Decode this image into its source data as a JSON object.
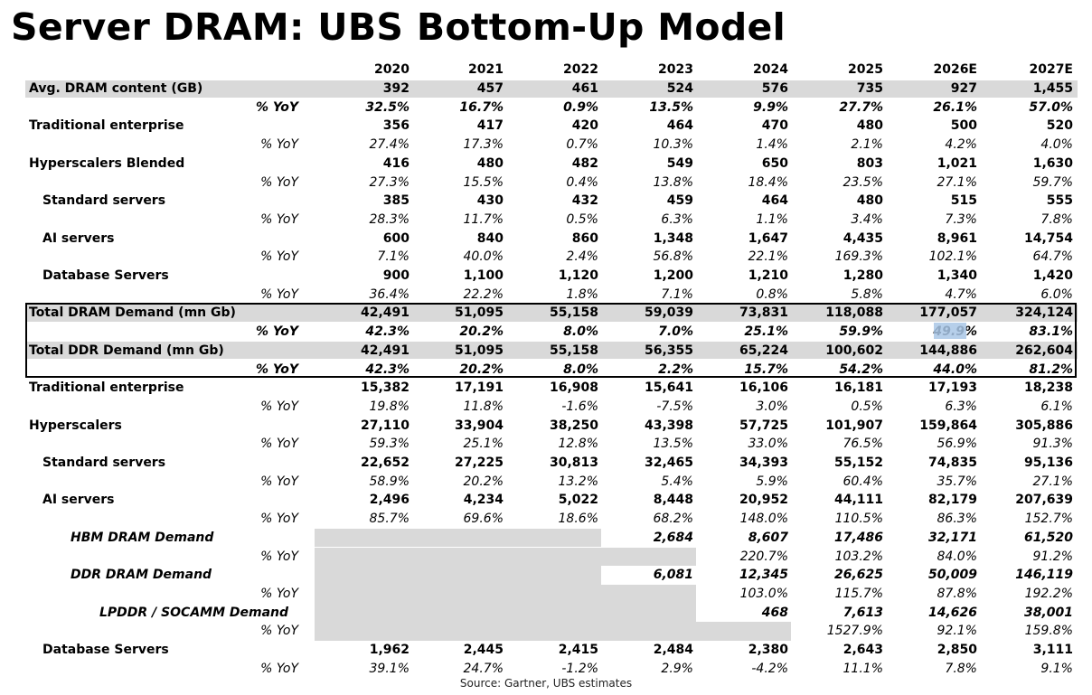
{
  "title": "Server DRAM: UBS Bottom-Up Model",
  "source": "Source:  Gartner, UBS estimates",
  "colors": {
    "highlight": "#d9d9d9",
    "selection": "#a9c7e6"
  },
  "chart_data": {
    "type": "table",
    "columns": [
      "2020",
      "2021",
      "2022",
      "2023",
      "2024",
      "2025",
      "2026E",
      "2027E"
    ],
    "rows": [
      {
        "label": "Avg. DRAM content (GB)",
        "values": [
          "392",
          "457",
          "461",
          "524",
          "576",
          "735",
          "927",
          "1,455"
        ]
      },
      {
        "label": "% YoY",
        "values": [
          "32.5%",
          "16.7%",
          "0.9%",
          "13.5%",
          "9.9%",
          "27.7%",
          "26.1%",
          "57.0%"
        ]
      },
      {
        "label": "Traditional enterprise",
        "values": [
          "356",
          "417",
          "420",
          "464",
          "470",
          "480",
          "500",
          "520"
        ]
      },
      {
        "label": "% YoY",
        "values": [
          "27.4%",
          "17.3%",
          "0.7%",
          "10.3%",
          "1.4%",
          "2.1%",
          "4.2%",
          "4.0%"
        ]
      },
      {
        "label": "Hyperscalers Blended",
        "values": [
          "416",
          "480",
          "482",
          "549",
          "650",
          "803",
          "1,021",
          "1,630"
        ]
      },
      {
        "label": "% YoY",
        "values": [
          "27.3%",
          "15.5%",
          "0.4%",
          "13.8%",
          "18.4%",
          "23.5%",
          "27.1%",
          "59.7%"
        ]
      },
      {
        "label": "Standard servers",
        "values": [
          "385",
          "430",
          "432",
          "459",
          "464",
          "480",
          "515",
          "555"
        ]
      },
      {
        "label": "% YoY",
        "values": [
          "28.3%",
          "11.7%",
          "0.5%",
          "6.3%",
          "1.1%",
          "3.4%",
          "7.3%",
          "7.8%"
        ]
      },
      {
        "label": "AI servers",
        "values": [
          "600",
          "840",
          "860",
          "1,348",
          "1,647",
          "4,435",
          "8,961",
          "14,754"
        ]
      },
      {
        "label": "% YoY",
        "values": [
          "7.1%",
          "40.0%",
          "2.4%",
          "56.8%",
          "22.1%",
          "169.3%",
          "102.1%",
          "64.7%"
        ]
      },
      {
        "label": "Database Servers",
        "values": [
          "900",
          "1,100",
          "1,120",
          "1,200",
          "1,210",
          "1,280",
          "1,340",
          "1,420"
        ]
      },
      {
        "label": "% YoY",
        "values": [
          "36.4%",
          "22.2%",
          "1.8%",
          "7.1%",
          "0.8%",
          "5.8%",
          "4.7%",
          "6.0%"
        ]
      },
      {
        "label": "Total DRAM Demand (mn Gb)",
        "values": [
          "42,491",
          "51,095",
          "55,158",
          "59,039",
          "73,831",
          "118,088",
          "177,057",
          "324,124"
        ]
      },
      {
        "label": "% YoY",
        "values": [
          "42.3%",
          "20.2%",
          "8.0%",
          "7.0%",
          "25.1%",
          "59.9%",
          "49.9%",
          "83.1%"
        ]
      },
      {
        "label": "Total DDR Demand (mn Gb)",
        "values": [
          "42,491",
          "51,095",
          "55,158",
          "56,355",
          "65,224",
          "100,602",
          "144,886",
          "262,604"
        ]
      },
      {
        "label": "% YoY",
        "values": [
          "42.3%",
          "20.2%",
          "8.0%",
          "2.2%",
          "15.7%",
          "54.2%",
          "44.0%",
          "81.2%"
        ]
      },
      {
        "label": "Traditional enterprise",
        "values": [
          "15,382",
          "17,191",
          "16,908",
          "15,641",
          "16,106",
          "16,181",
          "17,193",
          "18,238"
        ]
      },
      {
        "label": "% YoY",
        "values": [
          "19.8%",
          "11.8%",
          "-1.6%",
          "-7.5%",
          "3.0%",
          "0.5%",
          "6.3%",
          "6.1%"
        ]
      },
      {
        "label": "Hyperscalers",
        "values": [
          "27,110",
          "33,904",
          "38,250",
          "43,398",
          "57,725",
          "101,907",
          "159,864",
          "305,886"
        ]
      },
      {
        "label": "% YoY",
        "values": [
          "59.3%",
          "25.1%",
          "12.8%",
          "13.5%",
          "33.0%",
          "76.5%",
          "56.9%",
          "91.3%"
        ]
      },
      {
        "label": "Standard servers",
        "values": [
          "22,652",
          "27,225",
          "30,813",
          "32,465",
          "34,393",
          "55,152",
          "74,835",
          "95,136"
        ]
      },
      {
        "label": "% YoY",
        "values": [
          "58.9%",
          "20.2%",
          "13.2%",
          "5.4%",
          "5.9%",
          "60.4%",
          "35.7%",
          "27.1%"
        ]
      },
      {
        "label": "AI servers",
        "values": [
          "2,496",
          "4,234",
          "5,022",
          "8,448",
          "20,952",
          "44,111",
          "82,179",
          "207,639"
        ]
      },
      {
        "label": "% YoY",
        "values": [
          "85.7%",
          "69.6%",
          "18.6%",
          "68.2%",
          "148.0%",
          "110.5%",
          "86.3%",
          "152.7%"
        ]
      },
      {
        "label": "HBM DRAM Demand",
        "values": [
          "",
          "",
          "",
          "2,684",
          "8,607",
          "17,486",
          "32,171",
          "61,520"
        ]
      },
      {
        "label": "% YoY",
        "values": [
          "",
          "",
          "",
          "",
          "220.7%",
          "103.2%",
          "84.0%",
          "91.2%"
        ]
      },
      {
        "label": "DDR DRAM Demand",
        "values": [
          "",
          "",
          "",
          "6,081",
          "12,345",
          "26,625",
          "50,009",
          "146,119"
        ]
      },
      {
        "label": "% YoY",
        "values": [
          "",
          "",
          "",
          "",
          "103.0%",
          "115.7%",
          "87.8%",
          "192.2%"
        ]
      },
      {
        "label": "LPDDR / SOCAMM Demand",
        "values": [
          "",
          "",
          "",
          "",
          "468",
          "7,613",
          "14,626",
          "38,001"
        ]
      },
      {
        "label": "% YoY",
        "values": [
          "",
          "",
          "",
          "",
          "",
          "1527.9%",
          "92.1%",
          "159.8%"
        ]
      },
      {
        "label": "Database Servers",
        "values": [
          "1,962",
          "2,445",
          "2,415",
          "2,484",
          "2,380",
          "2,643",
          "2,850",
          "3,111"
        ]
      },
      {
        "label": "% YoY",
        "values": [
          "39.1%",
          "24.7%",
          "-1.2%",
          "2.9%",
          "-4.2%",
          "11.1%",
          "7.8%",
          "9.1%"
        ]
      }
    ]
  }
}
